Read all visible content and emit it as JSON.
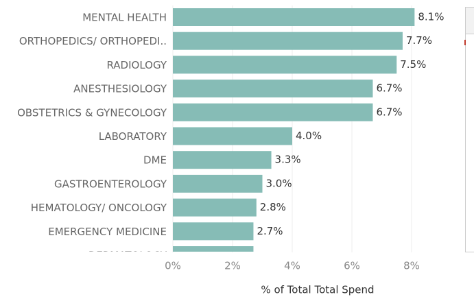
{
  "chart_data": {
    "type": "hbar",
    "categories": [
      "MENTAL HEALTH",
      "ORTHOPEDICS/ ORTHOPEDI..",
      "RADIOLOGY",
      "ANESTHESIOLOGY",
      "OBSTETRICS & GYNECOLOGY",
      "LABORATORY",
      "DME",
      "GASTROENTEROLOGY",
      "HEMATOLOGY/ ONCOLOGY",
      "EMERGENCY MEDICINE",
      "DERMATOLOGY"
    ],
    "values": [
      8.1,
      7.7,
      7.5,
      6.7,
      6.7,
      4.0,
      3.3,
      3.0,
      2.8,
      2.7,
      2.7
    ],
    "value_labels": [
      "8.1%",
      "7.7%",
      "7.5%",
      "6.7%",
      "6.7%",
      "4.0%",
      "3.3%",
      "3.0%",
      "2.8%",
      "2.7%",
      null
    ],
    "color": "#86bcb6",
    "xlim": [
      0,
      9
    ],
    "xticks": [
      {
        "value": 0,
        "label": "0%"
      },
      {
        "value": 2,
        "label": "2%"
      },
      {
        "value": 4,
        "label": "4%"
      },
      {
        "value": 6,
        "label": "6%"
      },
      {
        "value": 8,
        "label": "8%"
      }
    ],
    "xlabel": "% of Total Total Spend",
    "grid": true
  }
}
